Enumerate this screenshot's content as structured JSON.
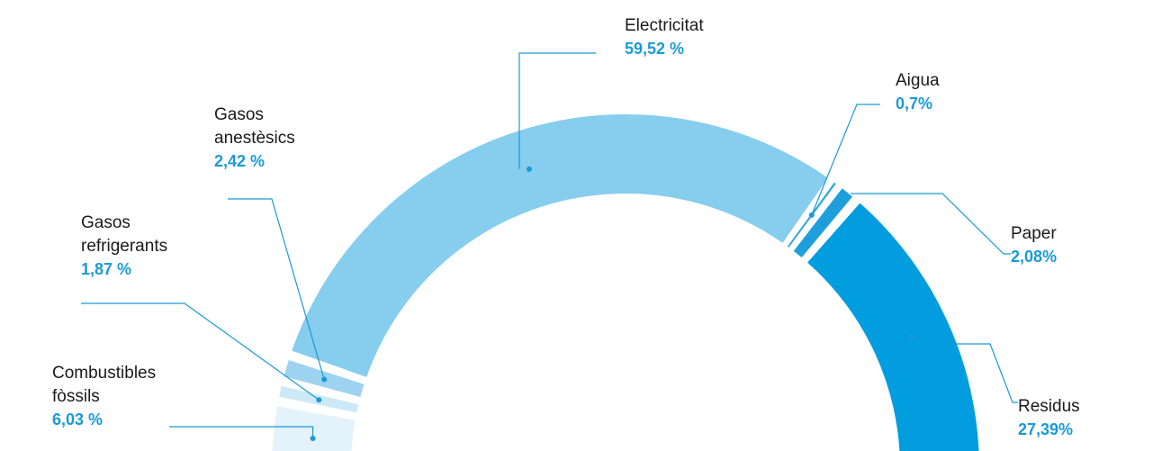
{
  "chart_data": {
    "type": "pie",
    "subtype": "half-donut",
    "series": [
      {
        "name": "Combustibles fòssils",
        "name_lines": [
          "Combustibles",
          "fòssils"
        ],
        "value": 6.03,
        "value_label": "6,03 %",
        "color": "#e3f2fb"
      },
      {
        "name": "Gasos refrigerants",
        "name_lines": [
          "Gasos",
          "refrigerants"
        ],
        "value": 1.87,
        "value_label": "1,87 %",
        "color": "#cde9f8"
      },
      {
        "name": "Gasos anestèsics",
        "name_lines": [
          "Gasos",
          "anestèsics"
        ],
        "value": 2.42,
        "value_label": "2,42 %",
        "color": "#9dd3f0"
      },
      {
        "name": "Electricitat",
        "name_lines": [
          "Electricitat"
        ],
        "value": 59.52,
        "value_label": "59,52 %",
        "color": "#86cdee"
      },
      {
        "name": "Aigua",
        "name_lines": [
          "Aigua"
        ],
        "value": 0.7,
        "value_label": "0,7%",
        "color": "#2ba6df"
      },
      {
        "name": "Paper",
        "name_lines": [
          "Paper"
        ],
        "value": 2.08,
        "value_label": "2,08%",
        "color": "#1e9fdc"
      },
      {
        "name": "Residus",
        "name_lines": [
          "Residus"
        ],
        "value": 27.39,
        "value_label": "27,39%",
        "color": "#029ddf"
      }
    ]
  }
}
